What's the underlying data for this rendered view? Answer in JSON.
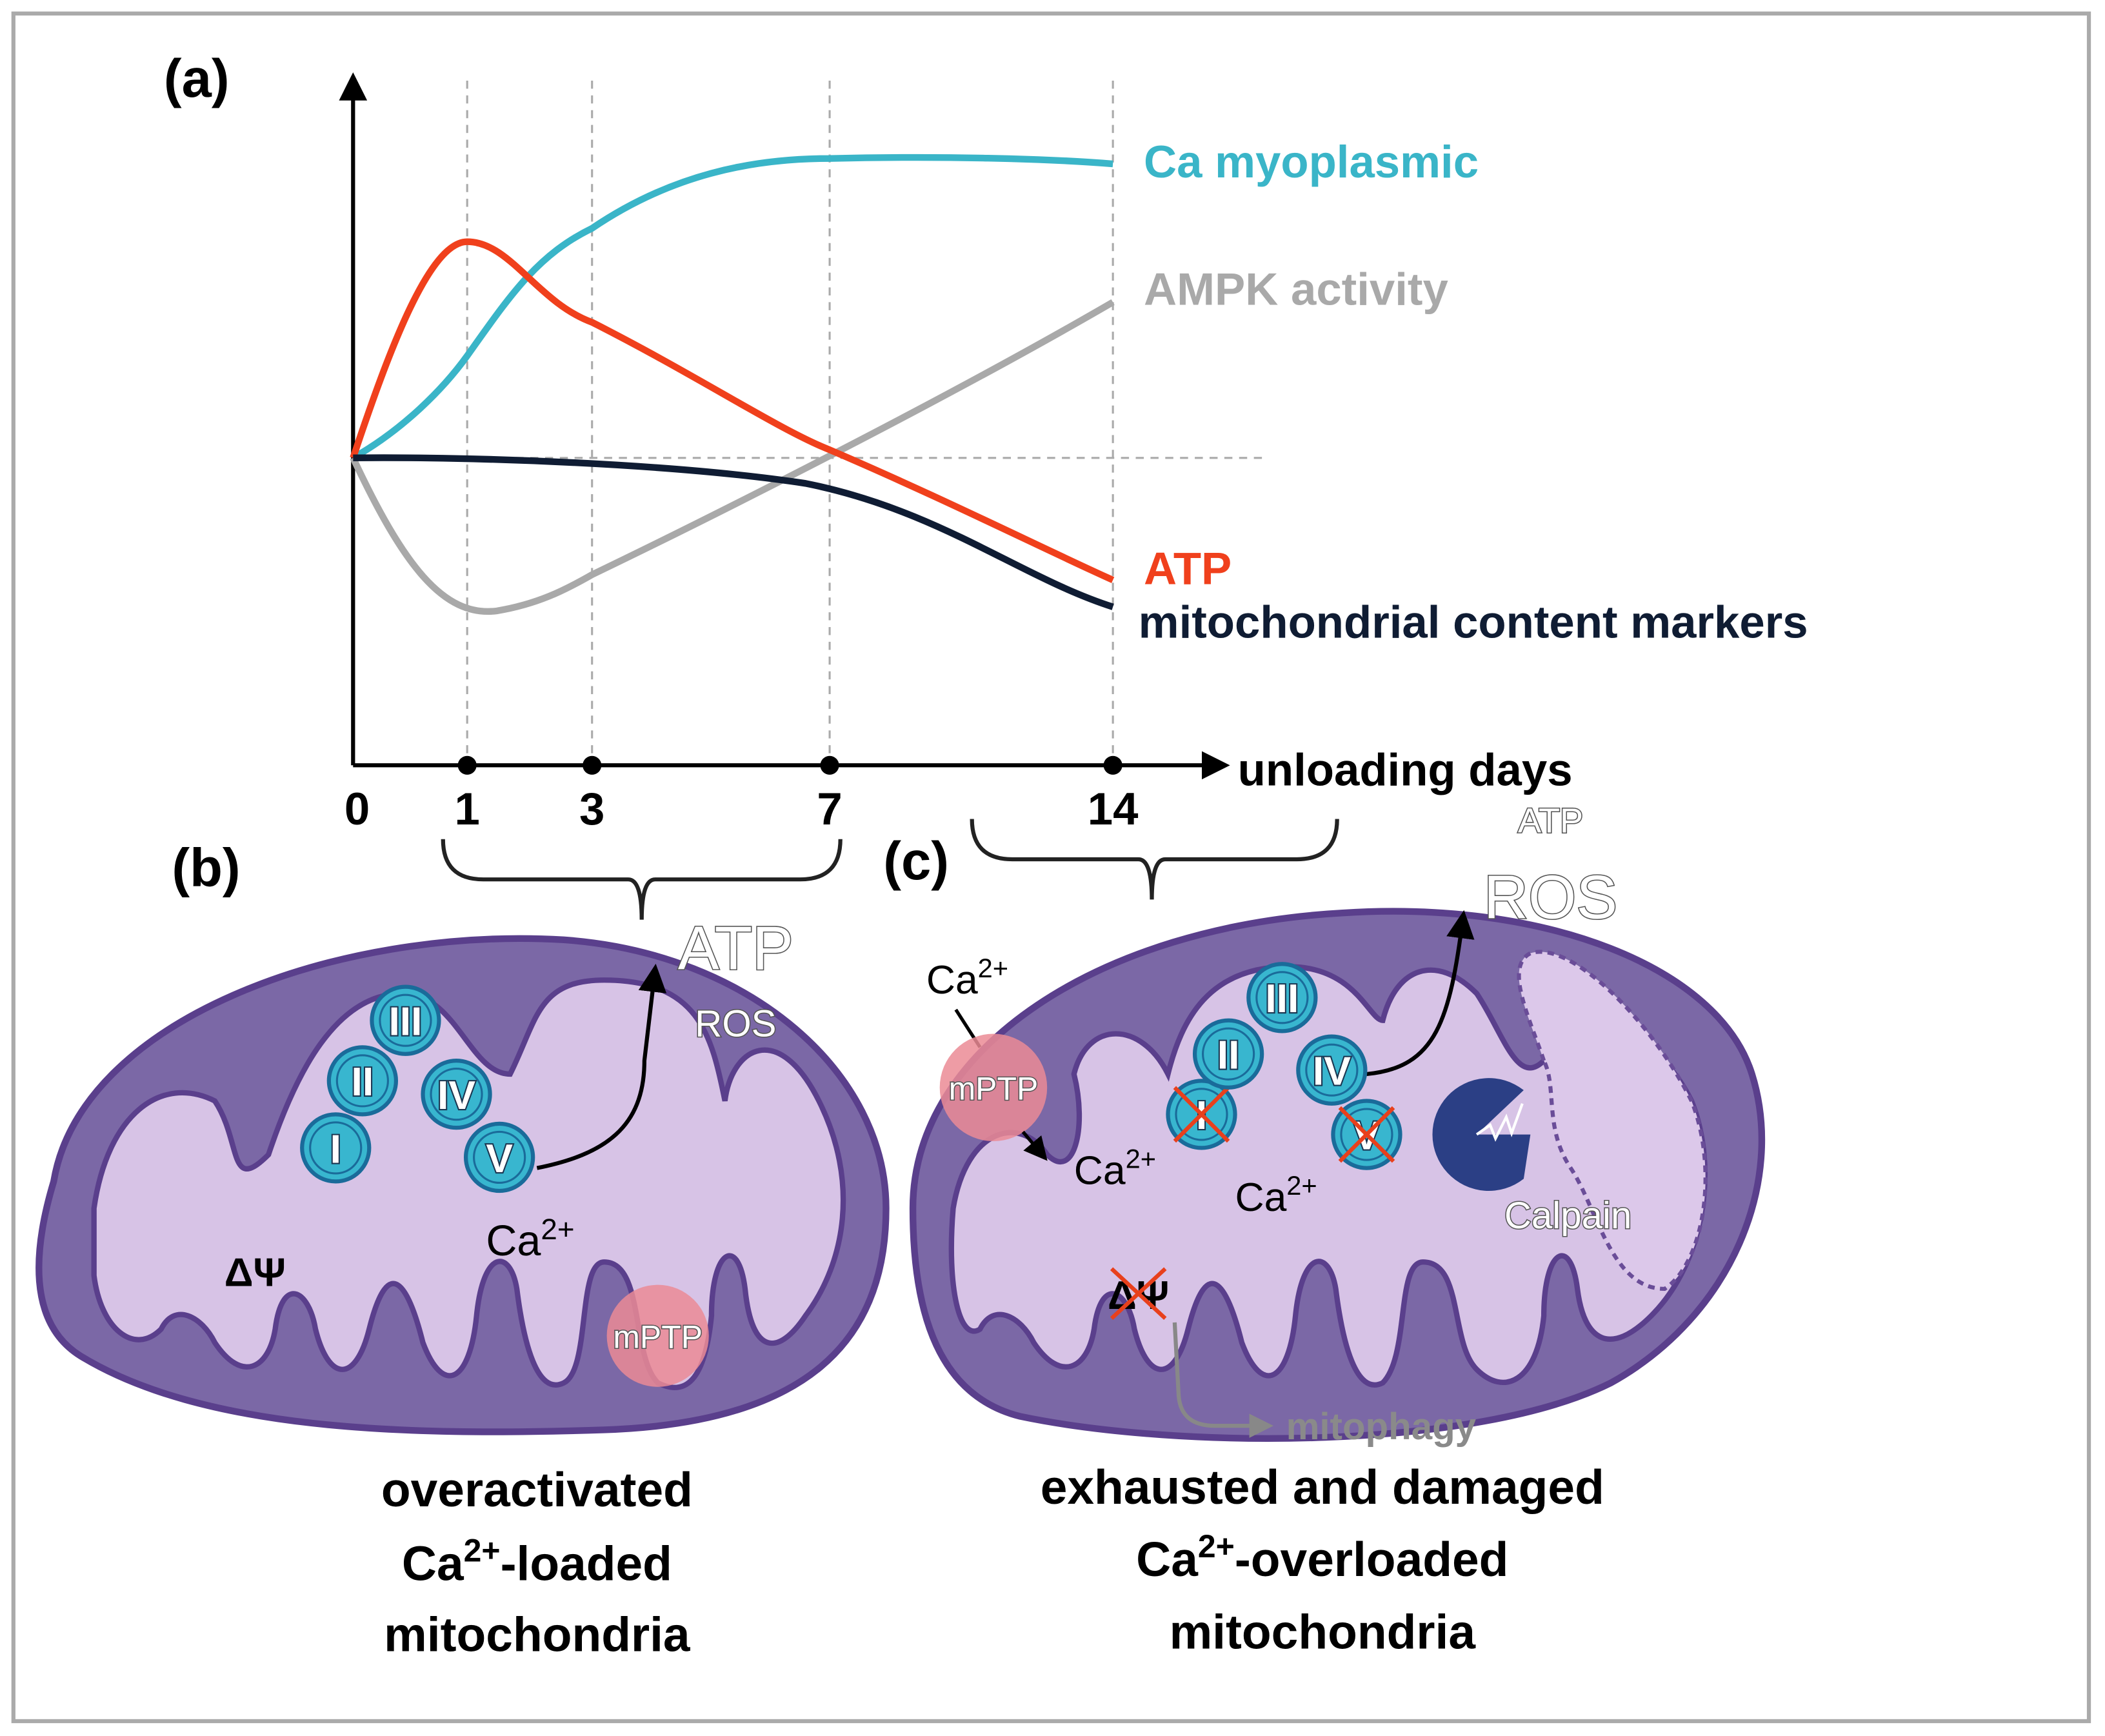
{
  "panel_a": {
    "label": "(a)",
    "x_axis_label": "unloading days",
    "x_ticks": [
      "0",
      "1",
      "3",
      "7",
      "14"
    ],
    "curves": [
      {
        "name": "Ca myoplasmic",
        "color": "#3ab5c8"
      },
      {
        "name": "AMPK activity",
        "color": "#a9a9a9"
      },
      {
        "name": "ATP",
        "color": "#f0401c"
      },
      {
        "name": "mitochondrial content markers",
        "color": "#0f1c33"
      }
    ]
  },
  "panel_b": {
    "label": "(b)",
    "complexes": [
      "I",
      "II",
      "III",
      "IV",
      "V"
    ],
    "atp": "ATP",
    "ros": "ROS",
    "ca": "Ca",
    "charge": "2+",
    "mptp": "mPTP",
    "delta_psi": "ΔΨ",
    "caption": {
      "line1": "overactivated",
      "line2_ca": "Ca",
      "line2_charge": "2+",
      "line2_rest": "-loaded",
      "line3": "mitochondria"
    }
  },
  "panel_c": {
    "label": "(c)",
    "complexes": [
      "I",
      "II",
      "III",
      "IV",
      "V"
    ],
    "atp": "ATP",
    "ros": "ROS",
    "ca": "Ca",
    "charge": "2+",
    "mptp": "mPTP",
    "delta_psi": "ΔΨ",
    "calpain": "Calpain",
    "mitophagy": "mitophagy",
    "caption": {
      "line1": "exhausted and damaged",
      "line2_ca": "Ca",
      "line2_charge": "2+",
      "line2_rest": "-overloaded",
      "line3": "mitochondria"
    }
  }
}
